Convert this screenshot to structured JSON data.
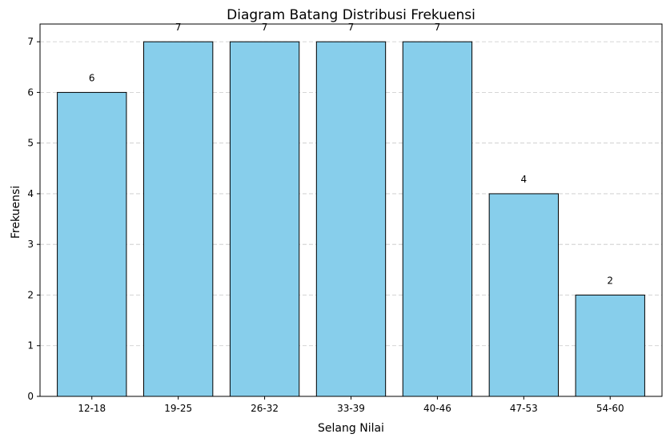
{
  "chart_data": {
    "type": "bar",
    "title": "Diagram Batang Distribusi Frekuensi",
    "xlabel": "Selang Nilai",
    "ylabel": "Frekuensi",
    "categories": [
      "12-18",
      "19-25",
      "26-32",
      "33-39",
      "40-46",
      "47-53",
      "54-60"
    ],
    "values": [
      6,
      7,
      7,
      7,
      7,
      4,
      2
    ],
    "data_labels": [
      "6",
      "7",
      "7",
      "7",
      "7",
      "4",
      "2"
    ],
    "yticks": [
      "0",
      "1",
      "2",
      "3",
      "4",
      "5",
      "6",
      "7"
    ],
    "ylim": [
      0,
      7.35
    ],
    "grid": "horizontal dashed",
    "colors": {
      "bar_fill": "#87ceeb",
      "bar_edge": "#000000",
      "grid": "#c8c8c8"
    }
  }
}
